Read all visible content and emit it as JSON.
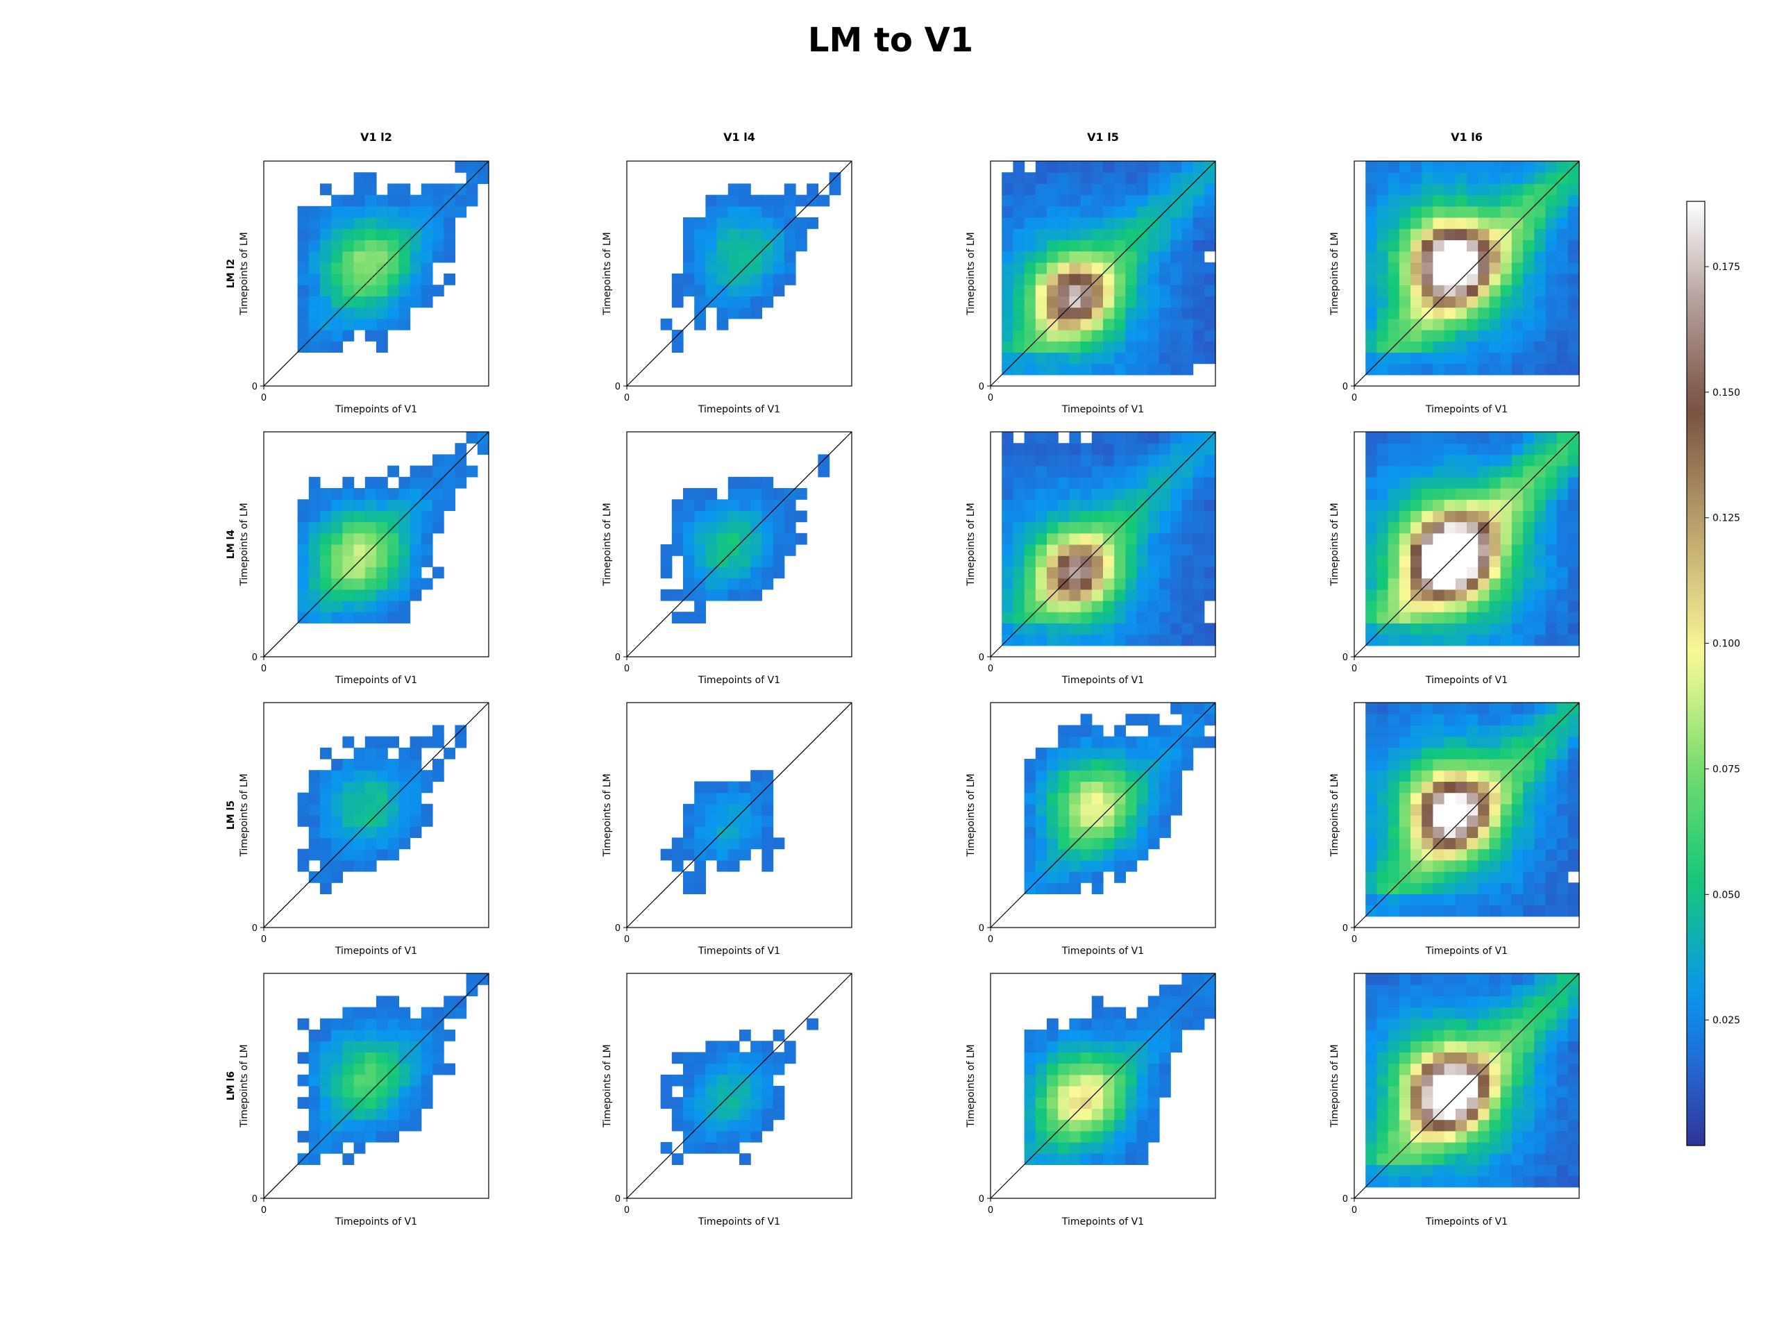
{
  "chart_data": {
    "type": "heatmap",
    "title": "LM to V1",
    "colormap": "terrain (reversed)",
    "column_titles": [
      "V1 l2",
      "V1 l4",
      "V1 l5",
      "V1 l6"
    ],
    "row_titles": [
      "LM l2",
      "LM l4",
      "LM l5",
      "LM l6"
    ],
    "xlabel": "Timepoints of V1",
    "ylabel": "Timepoints of LM",
    "origin_tick": "0",
    "diagonal_line": true,
    "masked_cells": "white (not significant)",
    "colorbar": {
      "vmin": 0.0,
      "vmax": 0.188,
      "ticks": [
        0.025,
        0.05,
        0.075,
        0.1,
        0.125,
        0.15,
        0.175
      ],
      "tick_labels": [
        "0.025",
        "0.050",
        "0.075",
        "0.100",
        "0.125",
        "0.150",
        "0.175"
      ]
    },
    "panels": [
      {
        "row": "LM l2",
        "col": "V1 l2",
        "peak_value": 0.055,
        "peak_x_frac": 0.45,
        "peak_y_frac": 0.55
      },
      {
        "row": "LM l2",
        "col": "V1 l4",
        "peak_value": 0.035,
        "peak_x_frac": 0.5,
        "peak_y_frac": 0.6
      },
      {
        "row": "LM l2",
        "col": "V1 l5",
        "peak_value": 0.115,
        "peak_x_frac": 0.37,
        "peak_y_frac": 0.4
      },
      {
        "row": "LM l2",
        "col": "V1 l6",
        "peak_value": 0.165,
        "peak_x_frac": 0.43,
        "peak_y_frac": 0.55
      },
      {
        "row": "LM l4",
        "col": "V1 l2",
        "peak_value": 0.06,
        "peak_x_frac": 0.42,
        "peak_y_frac": 0.45
      },
      {
        "row": "LM l4",
        "col": "V1 l4",
        "peak_value": 0.035,
        "peak_x_frac": 0.45,
        "peak_y_frac": 0.5
      },
      {
        "row": "LM l4",
        "col": "V1 l5",
        "peak_value": 0.11,
        "peak_x_frac": 0.38,
        "peak_y_frac": 0.38
      },
      {
        "row": "LM l4",
        "col": "V1 l6",
        "peak_value": 0.188,
        "peak_x_frac": 0.43,
        "peak_y_frac": 0.45
      },
      {
        "row": "LM l5",
        "col": "V1 l2",
        "peak_value": 0.035,
        "peak_x_frac": 0.45,
        "peak_y_frac": 0.55
      },
      {
        "row": "LM l5",
        "col": "V1 l4",
        "peak_value": 0.025,
        "peak_x_frac": 0.45,
        "peak_y_frac": 0.45
      },
      {
        "row": "LM l5",
        "col": "V1 l5",
        "peak_value": 0.065,
        "peak_x_frac": 0.45,
        "peak_y_frac": 0.55
      },
      {
        "row": "LM l5",
        "col": "V1 l6",
        "peak_value": 0.145,
        "peak_x_frac": 0.43,
        "peak_y_frac": 0.52
      },
      {
        "row": "LM l6",
        "col": "V1 l2",
        "peak_value": 0.045,
        "peak_x_frac": 0.45,
        "peak_y_frac": 0.55
      },
      {
        "row": "LM l6",
        "col": "V1 l4",
        "peak_value": 0.03,
        "peak_x_frac": 0.45,
        "peak_y_frac": 0.45
      },
      {
        "row": "LM l6",
        "col": "V1 l5",
        "peak_value": 0.07,
        "peak_x_frac": 0.4,
        "peak_y_frac": 0.45
      },
      {
        "row": "LM l6",
        "col": "V1 l6",
        "peak_value": 0.16,
        "peak_x_frac": 0.42,
        "peak_y_frac": 0.48
      }
    ]
  }
}
